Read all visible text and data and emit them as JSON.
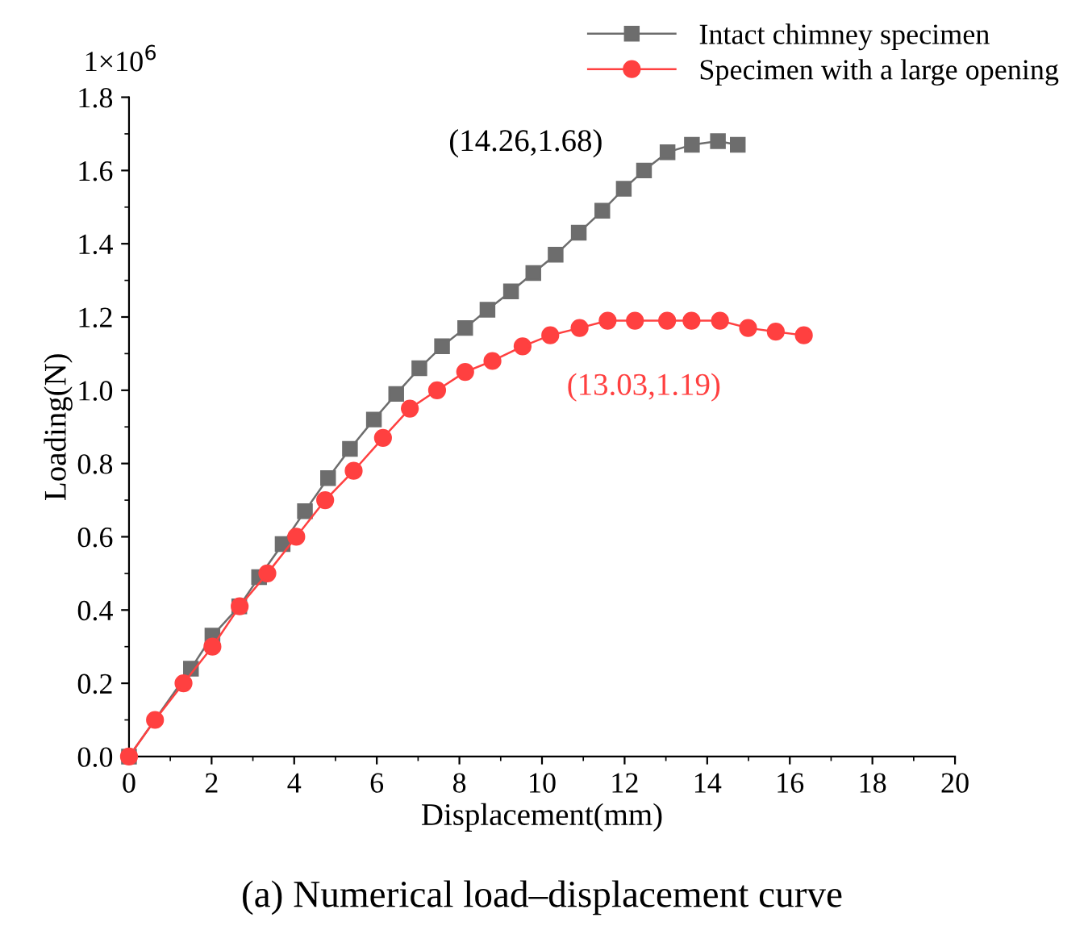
{
  "chart_data": {
    "type": "line",
    "title": "(a) Numerical load–displacement curve",
    "xlabel": "Displacement(mm)",
    "ylabel": "Loading(N)",
    "xlim": [
      0,
      20
    ],
    "xticks": [
      0,
      2,
      4,
      6,
      8,
      10,
      12,
      14,
      16,
      18,
      20
    ],
    "ylim": [
      0,
      1.8
    ],
    "yticks": [
      {
        "value": 0,
        "label": "0.0"
      },
      {
        "value": 0.2,
        "label": "0.2"
      },
      {
        "value": 0.4,
        "label": "0.4"
      },
      {
        "value": 0.6,
        "label": "0.6"
      },
      {
        "value": 0.8,
        "label": "0.8"
      },
      {
        "value": 1.0,
        "label": "1.0"
      },
      {
        "value": 1.2,
        "label": "1.2"
      },
      {
        "value": 1.4,
        "label": "1.4"
      },
      {
        "value": 1.6,
        "label": "1.6"
      },
      {
        "value": 1.8,
        "label": "1.8"
      }
    ],
    "legend": "top right",
    "grid": false,
    "annotations": [
      "1×10$^{6}$",
      "(14.26,1.68)",
      "(13.03,1.19)"
    ],
    "series": [
      {
        "name": "Intact chimney specimen",
        "color": "#6d6d6d",
        "marker": "square",
        "x": [
          0,
          1.5,
          2.02,
          2.67,
          3.15,
          3.72,
          4.26,
          4.82,
          5.35,
          5.93,
          6.47,
          7.03,
          7.58,
          8.14,
          8.68,
          9.25,
          9.79,
          10.33,
          10.89,
          11.46,
          11.98,
          12.47,
          13.04,
          13.63,
          14.26,
          14.74
        ],
        "values": [
          0,
          0.24,
          0.33,
          0.41,
          0.49,
          0.58,
          0.67,
          0.76,
          0.84,
          0.92,
          0.99,
          1.06,
          1.12,
          1.17,
          1.22,
          1.27,
          1.32,
          1.37,
          1.43,
          1.49,
          1.55,
          1.6,
          1.65,
          1.67,
          1.68,
          1.67
        ]
      },
      {
        "name": "Specimen with a large opening",
        "color": "#ff4040",
        "marker": "circle",
        "x": [
          0,
          0.63,
          1.32,
          2.02,
          2.68,
          3.35,
          4.05,
          4.75,
          5.44,
          6.15,
          6.8,
          7.46,
          8.14,
          8.8,
          9.53,
          10.2,
          10.91,
          11.59,
          12.25,
          13.03,
          13.62,
          14.31,
          14.99,
          15.66,
          16.34
        ],
        "values": [
          0,
          0.1,
          0.2,
          0.3,
          0.41,
          0.5,
          0.6,
          0.7,
          0.78,
          0.87,
          0.95,
          1.0,
          1.05,
          1.08,
          1.12,
          1.15,
          1.17,
          1.19,
          1.19,
          1.19,
          1.19,
          1.19,
          1.17,
          1.16,
          1.15
        ]
      }
    ]
  }
}
